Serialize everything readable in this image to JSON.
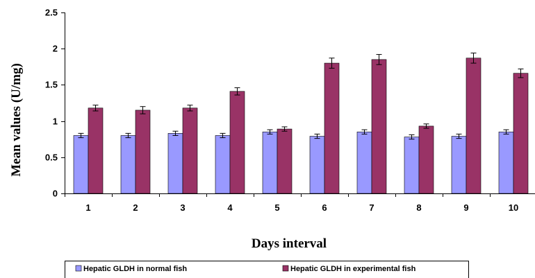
{
  "chart_data": {
    "type": "bar",
    "categories": [
      "1",
      "2",
      "3",
      "4",
      "5",
      "6",
      "7",
      "8",
      "9",
      "10"
    ],
    "series": [
      {
        "name": "Hepatic GLDH in normal fish",
        "color": "#9999ff",
        "values": [
          0.8,
          0.8,
          0.83,
          0.8,
          0.85,
          0.79,
          0.85,
          0.78,
          0.79,
          0.85
        ],
        "errors": [
          0.03,
          0.03,
          0.03,
          0.03,
          0.03,
          0.03,
          0.03,
          0.03,
          0.03,
          0.03
        ]
      },
      {
        "name": "Hepatic GLDH in experimental fish",
        "color": "#993366",
        "values": [
          1.18,
          1.15,
          1.18,
          1.41,
          0.89,
          1.8,
          1.85,
          0.93,
          1.87,
          1.66
        ],
        "errors": [
          0.04,
          0.05,
          0.04,
          0.05,
          0.03,
          0.07,
          0.07,
          0.03,
          0.07,
          0.06
        ]
      }
    ],
    "title": "",
    "xlabel": "Days interval",
    "ylabel": "Mean values (U/mg)",
    "ylim": [
      0,
      2.5
    ],
    "yticks": [
      "0",
      "0.5",
      "1",
      "1.5",
      "2",
      "2.5"
    ],
    "grid": false,
    "legend_position": "bottom"
  }
}
